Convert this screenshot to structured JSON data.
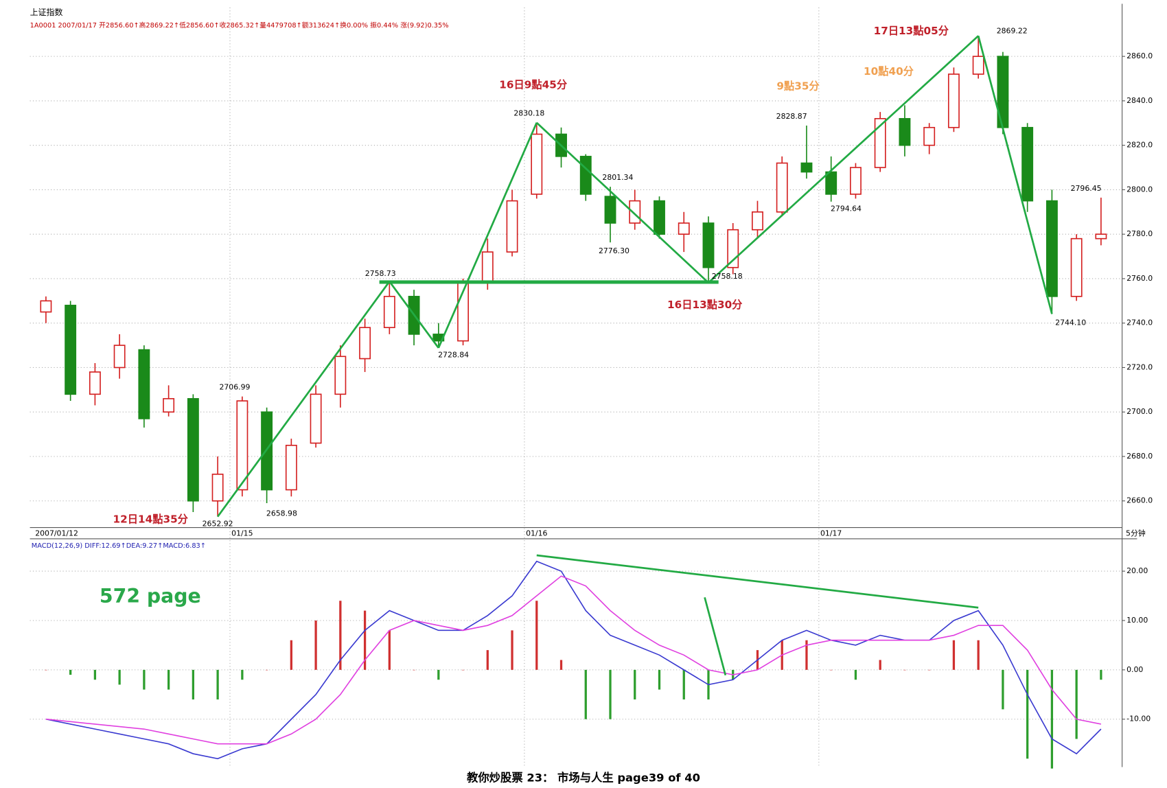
{
  "header": {
    "title": "上证指数",
    "quote": "1A0001 2007/01/17 开2856.60↑高2869.22↑低2856.60↑收2865.32↑量4479708↑额313624↑换0.00% 振0.44% 涨(9.92)0.35%"
  },
  "footer": "教你炒股票 23： 市场与人生      page39 of 40",
  "chart_data": [
    {
      "type": "candlestick",
      "categories": [
        "2007/01/12",
        null,
        null,
        null,
        null,
        null,
        null,
        null,
        "01/15",
        null,
        null,
        null,
        null,
        null,
        null,
        null,
        null,
        null,
        null,
        null,
        "01/16",
        null,
        null,
        null,
        null,
        null,
        null,
        null,
        null,
        null,
        null,
        null,
        "01/17",
        null,
        null,
        null,
        null,
        null,
        null,
        null,
        null,
        null,
        null,
        null
      ],
      "open": [
        2745,
        2748,
        2708,
        2720,
        2728,
        2700,
        2706,
        2660,
        2665,
        2700,
        2665,
        2686,
        2708,
        2724,
        2738,
        2752,
        2735,
        2732,
        2758,
        2772,
        2798,
        2825,
        2815,
        2797,
        2785,
        2795,
        2780,
        2785,
        2765,
        2782,
        2790,
        2812,
        2808,
        2798,
        2810,
        2832,
        2820,
        2828,
        2852,
        2860,
        2828,
        2795,
        2752,
        2778
      ],
      "high": [
        2752,
        2750,
        2722,
        2735,
        2730,
        2712,
        2708,
        2680,
        2706.99,
        2702,
        2688,
        2712,
        2730,
        2742,
        2758.73,
        2755,
        2740,
        2760,
        2778,
        2800,
        2830.18,
        2828,
        2816,
        2801.34,
        2800,
        2797,
        2790,
        2788,
        2785,
        2795,
        2815,
        2828.87,
        2815,
        2812,
        2835,
        2838,
        2830,
        2855,
        2869.22,
        2862,
        2830,
        2800,
        2780,
        2796.45
      ],
      "low": [
        2740,
        2705,
        2703,
        2715,
        2693,
        2698,
        2655,
        2652.92,
        2662,
        2658.98,
        2662,
        2684,
        2702,
        2718,
        2735,
        2730,
        2728.84,
        2730,
        2755,
        2770,
        2796,
        2810,
        2795,
        2776.3,
        2782,
        2778,
        2772,
        2758.18,
        2762,
        2778,
        2788,
        2805,
        2794.64,
        2796,
        2808,
        2815,
        2816,
        2826,
        2850,
        2825,
        2790,
        2744.1,
        2750,
        2775
      ],
      "close": [
        2750,
        2708,
        2718,
        2730,
        2697,
        2706,
        2660,
        2672,
        2705,
        2665,
        2685,
        2708,
        2725,
        2738,
        2752,
        2735,
        2732,
        2758,
        2772,
        2795,
        2825,
        2815,
        2798,
        2785,
        2795,
        2780,
        2785,
        2765,
        2782,
        2790,
        2812,
        2808,
        2798,
        2810,
        2832,
        2820,
        2828,
        2852,
        2860,
        2828,
        2795,
        2752,
        2778,
        2780
      ],
      "up_color": "#d42020",
      "down_color": "#1a8a1a",
      "ylim": [
        2648,
        2882
      ],
      "yticks": [
        {
          "value": 2660,
          "label": "2660.0"
        },
        {
          "value": 2680,
          "label": "2680.0"
        },
        {
          "value": 2700,
          "label": "2700.0"
        },
        {
          "value": 2720,
          "label": "2720.0"
        },
        {
          "value": 2740,
          "label": "2740.0"
        },
        {
          "value": 2760,
          "label": "2760.0"
        },
        {
          "value": 2780,
          "label": "2780.0"
        },
        {
          "value": 2800,
          "label": "2800.0"
        },
        {
          "value": 2820,
          "label": "2820.0"
        },
        {
          "value": 2840,
          "label": "2840.0"
        },
        {
          "value": 2860,
          "label": "2860.0"
        }
      ],
      "grid": true,
      "period_label": "5分钟",
      "point_labels": [
        "2652.92",
        "2706.99",
        "2658.98",
        "2758.73",
        "2728.84",
        "2830.18",
        "2801.34",
        "2776.30",
        "2758.18",
        "2828.87",
        "2794.64",
        "2869.22",
        "2796.45",
        "2744.10"
      ],
      "annotations": [
        "12日14點35分",
        "16日9點45分",
        "16日13點30分",
        "9點35分",
        "10點40分",
        "17日13點05分",
        "572 page"
      ]
    },
    {
      "type": "macd",
      "title": "MACD(12,26,9) DIFF:12.69↑DEA:9.27↑MACD:6.83↑",
      "series": [
        {
          "name": "DIFF",
          "color": "#3a3ad0",
          "values": [
            -10,
            -11,
            -12,
            -13,
            -14,
            -15,
            -17,
            -18,
            -16,
            -15,
            -10,
            -5,
            2,
            8,
            12,
            10,
            8,
            8,
            11,
            15,
            22,
            20,
            12,
            7,
            5,
            3,
            0,
            -3,
            -2,
            2,
            6,
            8,
            6,
            5,
            7,
            6,
            6,
            10,
            12,
            5,
            -5,
            -14,
            -17,
            -12
          ]
        },
        {
          "name": "DEA",
          "color": "#e040e0",
          "values": [
            -10,
            -10.5,
            -11,
            -11.5,
            -12,
            -13,
            -14,
            -15,
            -15,
            -15,
            -13,
            -10,
            -5,
            2,
            8,
            10,
            9,
            8,
            9,
            11,
            15,
            19,
            17,
            12,
            8,
            5,
            3,
            0,
            -1,
            0,
            3,
            5,
            6,
            6,
            6,
            6,
            6,
            7,
            9,
            9,
            4,
            -4,
            -10,
            -11
          ]
        },
        {
          "name": "MACD",
          "type": "bar",
          "up_color": "#d03030",
          "down_color": "#2e9e2e",
          "values": [
            0,
            -1,
            -2,
            -3,
            -4,
            -4,
            -6,
            -6,
            -2,
            0,
            6,
            10,
            14,
            12,
            8,
            0,
            -2,
            0,
            4,
            8,
            14,
            2,
            -10,
            -10,
            -6,
            -4,
            -6,
            -6,
            -2,
            4,
            6,
            6,
            0,
            -2,
            2,
            0,
            0,
            6,
            6,
            -8,
            -18,
            -20,
            -14,
            -2
          ]
        }
      ],
      "ylim": [
        -19.7,
        25.8
      ],
      "yticks": [
        {
          "value": -10,
          "label": "-10.00"
        },
        {
          "value": 0,
          "label": "0.00"
        },
        {
          "value": 10,
          "label": "10.00"
        },
        {
          "value": 20,
          "label": "20.00"
        }
      ],
      "grid": true
    }
  ]
}
